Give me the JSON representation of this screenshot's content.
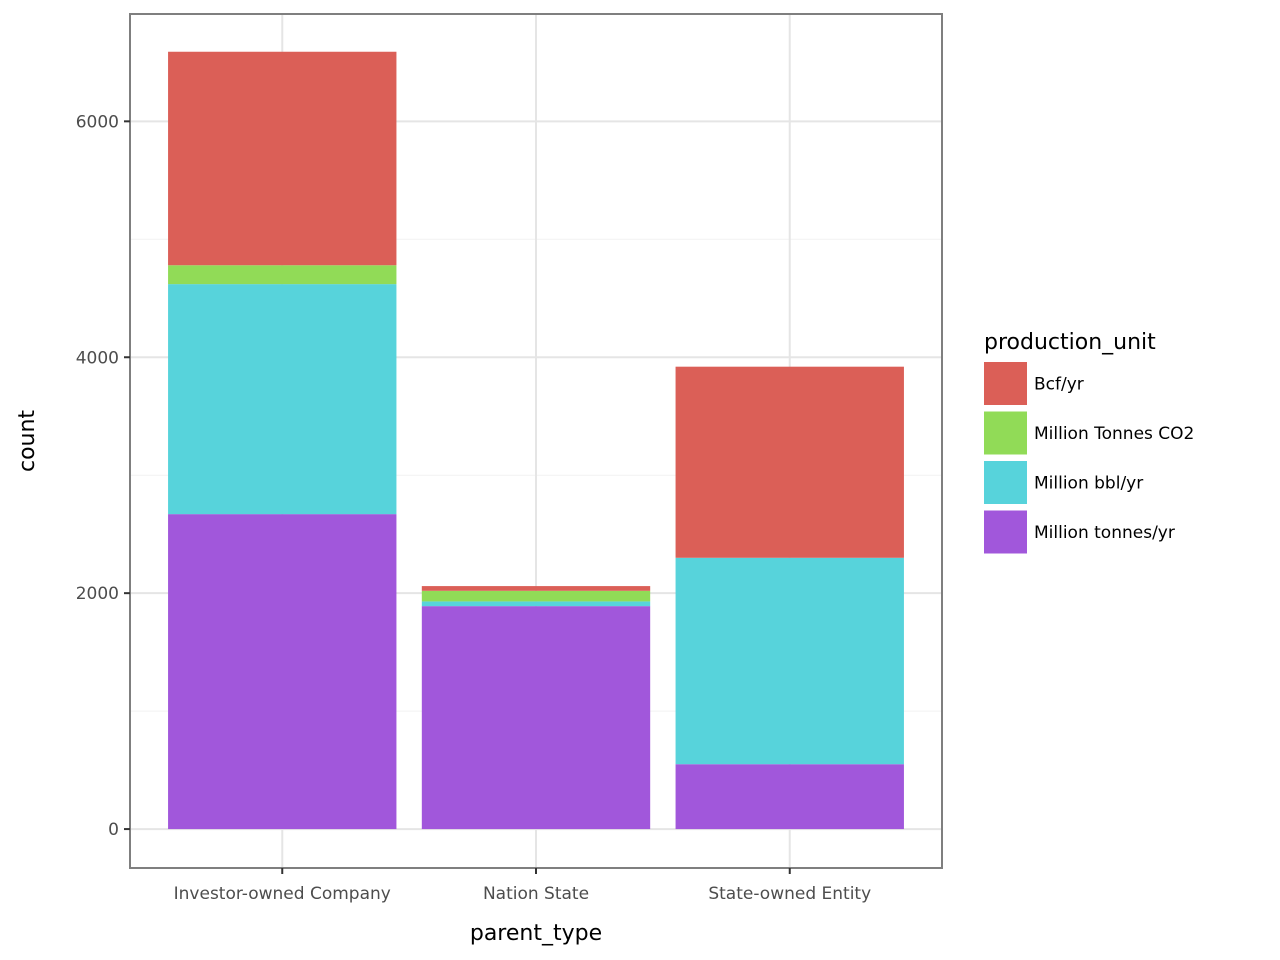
{
  "chart_data": {
    "type": "bar",
    "stacked": true,
    "xlabel": "parent_type",
    "ylabel": "count",
    "categories": [
      "Investor-owned Company",
      "Nation State",
      "State-owned Entity"
    ],
    "ylim": [
      -330,
      6910
    ],
    "yticks": [
      0,
      2000,
      4000,
      6000
    ],
    "grid": true,
    "legend": {
      "title": "production_unit",
      "position": "right"
    },
    "series": [
      {
        "name": "Bcf/yr",
        "color": "#DB5F57",
        "values": [
          1810,
          40,
          1620
        ]
      },
      {
        "name": "Million Tonnes CO2",
        "color": "#91DB57",
        "values": [
          160,
          90,
          0
        ]
      },
      {
        "name": "Million bbl/yr",
        "color": "#57D3DB",
        "values": [
          1950,
          40,
          1750
        ]
      },
      {
        "name": "Million tonnes/yr",
        "color": "#A157DB",
        "values": [
          2670,
          1890,
          550
        ]
      }
    ]
  }
}
